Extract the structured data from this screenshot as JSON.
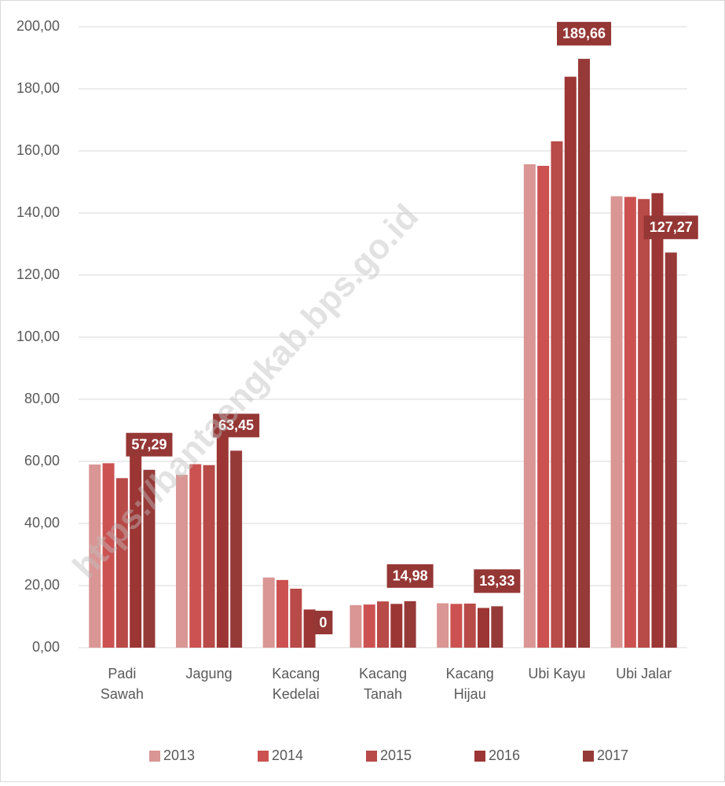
{
  "chart_data": {
    "type": "bar",
    "watermark": "https://bantaengkab.bps.go.id",
    "categories": [
      "Padi Sawah",
      "Jagung",
      "Kacang Kedelai",
      "Kacang Tanah",
      "Kacang Hijau",
      "Ubi Kayu",
      "Ubi Jalar"
    ],
    "series": [
      {
        "name": "2013",
        "color": "#d99694",
        "values": [
          59.0,
          55.7,
          22.6,
          13.7,
          14.3,
          155.7,
          145.4
        ]
      },
      {
        "name": "2014",
        "color": "#cc5252",
        "values": [
          59.4,
          59.1,
          21.8,
          13.9,
          14.1,
          155.2,
          145.2
        ]
      },
      {
        "name": "2015",
        "color": "#b84a48",
        "values": [
          54.6,
          58.8,
          19.0,
          14.9,
          14.2,
          163.1,
          144.5
        ]
      },
      {
        "name": "2016",
        "color": "#9c3634",
        "values": [
          63.6,
          68.1,
          12.3,
          14.1,
          12.8,
          183.9,
          146.4
        ]
      },
      {
        "name": "2017",
        "color": "#963a38",
        "values": [
          57.29,
          63.45,
          0,
          14.98,
          13.33,
          189.66,
          127.27
        ],
        "value_labels": [
          "57,29",
          "63,45",
          "0",
          "14,98",
          "13,33",
          "189,66",
          "127,27"
        ],
        "label_color": "#953735"
      }
    ],
    "ylim": [
      0,
      200
    ],
    "yticks": [
      {
        "value": 0,
        "label": "0,00"
      },
      {
        "value": 20,
        "label": "20,00"
      },
      {
        "value": 40,
        "label": "40,00"
      },
      {
        "value": 60,
        "label": "60,00"
      },
      {
        "value": 80,
        "label": "80,00"
      },
      {
        "value": 100,
        "label": "100,00"
      },
      {
        "value": 120,
        "label": "120,00"
      },
      {
        "value": 140,
        "label": "140,00"
      },
      {
        "value": 160,
        "label": "160,00"
      },
      {
        "value": 180,
        "label": "180,00"
      },
      {
        "value": 200,
        "label": "200,00"
      }
    ],
    "grid": true,
    "legend": "bottom"
  }
}
